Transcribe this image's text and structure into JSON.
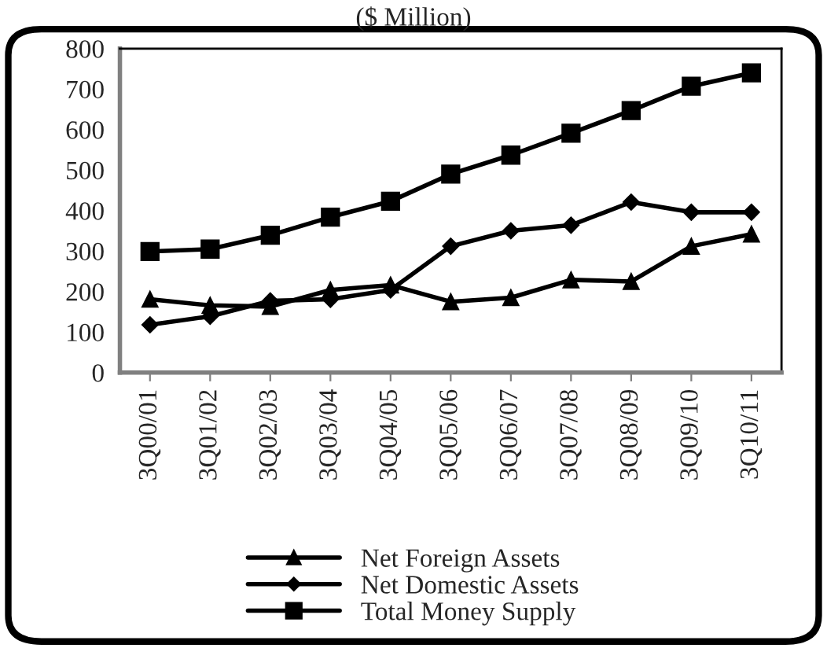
{
  "chart_data": {
    "type": "line",
    "title": "($ Million)",
    "categories": [
      "3Q00/01",
      "3Q01/02",
      "3Q02/03",
      "3Q03/04",
      "3Q04/05",
      "3Q05/06",
      "3Q06/07",
      "3Q07/08",
      "3Q08/09",
      "3Q09/10",
      "3Q10/11"
    ],
    "series": [
      {
        "name": "Net Foreign Assets",
        "color": "#000000",
        "marker": "triangle",
        "values": [
          181,
          166,
          163,
          204,
          216,
          175,
          185,
          229,
          225,
          312,
          342
        ]
      },
      {
        "name": "Net Domestic Assets",
        "color": "#000000",
        "marker": "diamond",
        "values": [
          118,
          139,
          177,
          181,
          204,
          312,
          350,
          364,
          421,
          396,
          396
        ]
      },
      {
        "name": "Total Money Supply",
        "color": "#000000",
        "marker": "square",
        "values": [
          299,
          305,
          339,
          384,
          423,
          490,
          537,
          591,
          647,
          707,
          740
        ]
      }
    ],
    "ylim": [
      0,
      800
    ],
    "yticks": [
      0,
      100,
      200,
      300,
      400,
      500,
      600,
      700,
      800
    ],
    "grid": false,
    "legend": "bottom",
    "line_style": "solid"
  }
}
